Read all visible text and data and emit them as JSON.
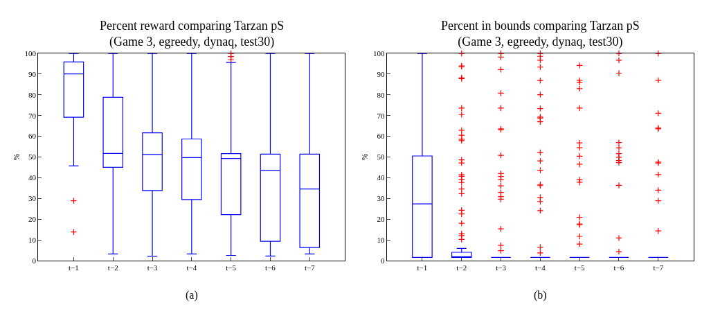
{
  "chart_data": [
    {
      "type": "box",
      "title": "Percent reward comparing Tarzan pS\n(Game 3, egreedy, dynaq, test30)",
      "ylabel": "%",
      "categories": [
        "t−1",
        "t−2",
        "t−3",
        "t−4",
        "t−5",
        "t−6",
        "t−7"
      ],
      "ylim": [
        0,
        100
      ],
      "yticks": [
        0,
        10,
        20,
        30,
        40,
        50,
        60,
        70,
        80,
        90,
        100
      ],
      "annotations": [
        "(a)"
      ],
      "series": [
        {
          "color": "#0000ff",
          "boxes": [
            {
              "low": 45.7,
              "q1": 69.2,
              "median": 90.1,
              "q3": 95.9,
              "high": 100,
              "outliers": [
                28.9,
                13.8
              ]
            },
            {
              "low": 3.2,
              "q1": 45.0,
              "median": 51.7,
              "q3": 78.8,
              "high": 100
            },
            {
              "low": 2.1,
              "q1": 33.8,
              "median": 51.2,
              "q3": 61.7,
              "high": 100
            },
            {
              "low": 3.2,
              "q1": 29.5,
              "median": 49.7,
              "q3": 58.7,
              "high": 100
            },
            {
              "low": 2.5,
              "q1": 22.2,
              "median": 49.3,
              "q3": 51.6,
              "high": 95.6,
              "outliers": [
                100,
                98.5,
                97
              ]
            },
            {
              "low": 2.2,
              "q1": 9.3,
              "median": 43.5,
              "q3": 51.4,
              "high": 100
            },
            {
              "low": 3.2,
              "q1": 6.3,
              "median": 34.6,
              "q3": 51.4,
              "high": 100
            }
          ]
        }
      ]
    },
    {
      "type": "box",
      "title": "Percent in bounds comparing Tarzan pS\n(Game 3, egreedy, dynaq, test30)",
      "ylabel": "%",
      "categories": [
        "t−1",
        "t−2",
        "t−3",
        "t−4",
        "t−5",
        "t−6",
        "t−7"
      ],
      "ylim": [
        0,
        100
      ],
      "yticks": [
        0,
        10,
        20,
        30,
        40,
        50,
        60,
        70,
        80,
        90,
        100
      ],
      "annotations": [
        "(b)"
      ],
      "series": [
        {
          "color": "#0000ff",
          "boxes": [
            {
              "low": 1.5,
              "q1": 1.5,
              "median": 27.4,
              "q3": 50.5,
              "high": 100
            },
            {
              "low": 1.5,
              "q1": 1.5,
              "median": 1.5,
              "q3": 4.0,
              "high": 5.9,
              "outliers": [
                100,
                94.0,
                93.6,
                88.2,
                87.8,
                73.6,
                70.5,
                62.9,
                60.5,
                58.6,
                57.9,
                48.6,
                47.1,
                41.4,
                40.7,
                39.2,
                37.7,
                34.6,
                32.3,
                24.3,
                22.5,
                18.0,
                13.0,
                12.1,
                10.2
              ]
            },
            {
              "low": 1.5,
              "q1": 1.5,
              "median": 1.5,
              "q3": 1.5,
              "high": 1.5,
              "outliers": [
                100,
                98.2,
                92.2,
                80.8,
                73.6,
                63.6,
                63.2,
                50.8,
                42.0,
                40.6,
                39.1,
                36.1,
                32.9,
                30.9,
                29.6,
                15.3,
                7.4,
                4.8
              ]
            },
            {
              "low": 1.5,
              "q1": 1.5,
              "median": 1.5,
              "q3": 1.5,
              "high": 1.5,
              "outliers": [
                100,
                98.6,
                96.7,
                93.4,
                86.9,
                80.1,
                73.4,
                69.3,
                68.8,
                67.0,
                52.2,
                48.1,
                43.6,
                36.7,
                36.2,
                30.5,
                28.5,
                24.1,
                6.5,
                3.7
              ]
            },
            {
              "low": 1.5,
              "q1": 1.5,
              "median": 1.5,
              "q3": 1.5,
              "high": 1.5,
              "outliers": [
                94.2,
                87.0,
                86.0,
                83.0,
                73.6,
                56.8,
                54.5,
                50.4,
                46.5,
                39.0,
                37.8,
                20.9,
                17.7,
                17.3,
                11.7,
                8.0
              ]
            },
            {
              "low": 1.5,
              "q1": 1.5,
              "median": 1.5,
              "q3": 1.5,
              "high": 1.5,
              "outliers": [
                100,
                96.7,
                90.4,
                57.0,
                54.4,
                51.6,
                49.9,
                48.3,
                47.3,
                36.3,
                10.9,
                4.3
              ]
            },
            {
              "low": 1.5,
              "q1": 1.5,
              "median": 1.5,
              "q3": 1.5,
              "high": 1.5,
              "outliers": [
                100,
                87.0,
                71.1,
                64.0,
                63.6,
                47.5,
                47.1,
                41.5,
                34.0,
                28.9,
                14.3
              ]
            }
          ]
        }
      ]
    }
  ]
}
